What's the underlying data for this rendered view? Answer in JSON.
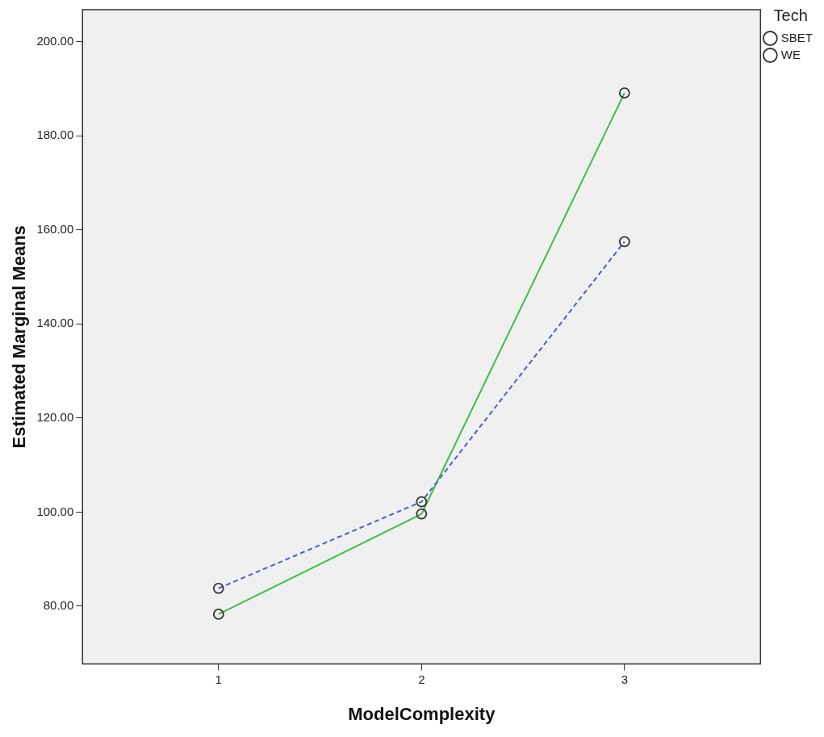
{
  "chart_data": {
    "type": "line",
    "xlabel": "ModelComplexity",
    "ylabel": "Estimated Marginal Means",
    "legend_title": "Tech",
    "x": [
      1,
      2,
      3
    ],
    "xlim": [
      0.33,
      3.67
    ],
    "xticks": [
      1,
      2,
      3
    ],
    "ylim": [
      67.7,
      206.8
    ],
    "yticks": [
      {
        "value": 80,
        "label": "80.00"
      },
      {
        "value": 100,
        "label": "100.00"
      },
      {
        "value": 120,
        "label": "120.00"
      },
      {
        "value": 140,
        "label": "140.00"
      },
      {
        "value": 160,
        "label": "160.00"
      },
      {
        "value": 180,
        "label": "180.00"
      },
      {
        "value": 200,
        "label": "200.00"
      }
    ],
    "series": [
      {
        "name": "SBET",
        "color": "#4a5fc9",
        "values": [
          83.8,
          102.2,
          157.5
        ],
        "line_style": "dashed"
      },
      {
        "name": "WE",
        "color": "#3cbe4a",
        "values": [
          78.3,
          99.6,
          189.1
        ],
        "line_style": "solid"
      }
    ],
    "marker": "circle",
    "grid": false,
    "legend": "top right"
  }
}
